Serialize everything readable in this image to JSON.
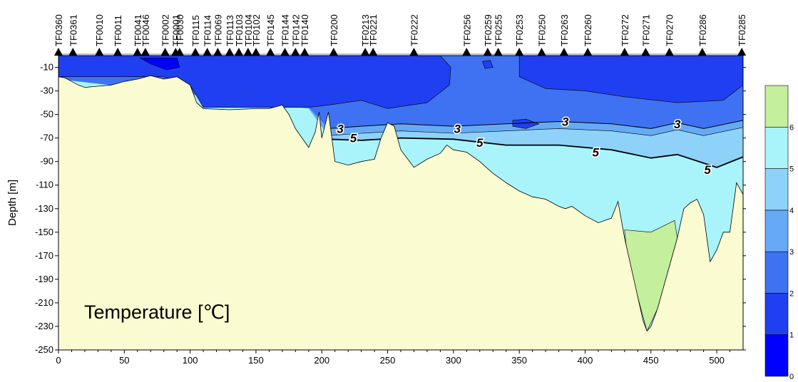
{
  "chart_data": {
    "type": "heatmap",
    "title": "Temperature [℃]",
    "xlabel": "",
    "ylabel": "Depth [m]",
    "xlim": [
      0,
      520
    ],
    "ylim": [
      -250,
      0
    ],
    "x_ticks": [
      0,
      50,
      100,
      150,
      200,
      250,
      300,
      350,
      400,
      450,
      500
    ],
    "y_ticks": [
      -10,
      -30,
      -50,
      -70,
      -90,
      -110,
      -130,
      -150,
      -170,
      -190,
      -210,
      -230,
      -250
    ],
    "colorbar": {
      "ticks": [
        0,
        1,
        2,
        3,
        4,
        5,
        6
      ],
      "colors": [
        "#0000ff",
        "#1f3ff0",
        "#3f72f2",
        "#66aaf5",
        "#8ed2fa",
        "#a9f4fb",
        "#c4ef9c"
      ]
    },
    "contour_labels": [
      "3",
      "3",
      "3",
      "3",
      "5",
      "5",
      "5",
      "5"
    ],
    "stations": [
      {
        "name": "TF0360",
        "x": 0
      },
      {
        "name": "TF0361",
        "x": 11
      },
      {
        "name": "TF0010",
        "x": 31
      },
      {
        "name": "TF0011",
        "x": 45
      },
      {
        "name": "TF0041",
        "x": 60
      },
      {
        "name": "TF0046",
        "x": 66
      },
      {
        "name": "TF0002",
        "x": 81
      },
      {
        "name": "TF0001",
        "x": 89
      },
      {
        "name": "TF0030",
        "x": 92
      },
      {
        "name": "TF0115",
        "x": 104
      },
      {
        "name": "TF0114",
        "x": 113
      },
      {
        "name": "TF0069",
        "x": 121
      },
      {
        "name": "TF0113",
        "x": 130
      },
      {
        "name": "TF0103",
        "x": 137
      },
      {
        "name": "TF0104",
        "x": 144
      },
      {
        "name": "TF0102",
        "x": 150
      },
      {
        "name": "TF0145",
        "x": 161
      },
      {
        "name": "TF0144",
        "x": 172
      },
      {
        "name": "TF0142",
        "x": 180
      },
      {
        "name": "TF0140",
        "x": 187
      },
      {
        "name": "TF0200",
        "x": 209
      },
      {
        "name": "TF0213",
        "x": 233
      },
      {
        "name": "TF0221",
        "x": 239
      },
      {
        "name": "TF0222",
        "x": 270
      },
      {
        "name": "TF0256",
        "x": 310
      },
      {
        "name": "TF0259",
        "x": 326
      },
      {
        "name": "TF0255",
        "x": 334
      },
      {
        "name": "TF0253",
        "x": 350
      },
      {
        "name": "TF0250",
        "x": 367
      },
      {
        "name": "TF0263",
        "x": 384
      },
      {
        "name": "TF0260",
        "x": 402
      },
      {
        "name": "TF0272",
        "x": 430
      },
      {
        "name": "TF0271",
        "x": 446
      },
      {
        "name": "TF0270",
        "x": 464
      },
      {
        "name": "TF0286",
        "x": 489
      },
      {
        "name": "TF0285",
        "x": 519
      }
    ],
    "bottom_profile": [
      [
        0,
        -18
      ],
      [
        5,
        -19
      ],
      [
        10,
        -22
      ],
      [
        15,
        -25
      ],
      [
        20,
        -27
      ],
      [
        30,
        -26
      ],
      [
        40,
        -25
      ],
      [
        50,
        -22
      ],
      [
        60,
        -20
      ],
      [
        70,
        -17
      ],
      [
        80,
        -20
      ],
      [
        90,
        -18
      ],
      [
        100,
        -25
      ],
      [
        105,
        -40
      ],
      [
        110,
        -45
      ],
      [
        130,
        -46
      ],
      [
        150,
        -45
      ],
      [
        160,
        -45
      ],
      [
        170,
        -42
      ],
      [
        175,
        -50
      ],
      [
        180,
        -62
      ],
      [
        185,
        -70
      ],
      [
        190,
        -78
      ],
      [
        195,
        -65
      ],
      [
        198,
        -48
      ],
      [
        200,
        -70
      ],
      [
        205,
        -48
      ],
      [
        210,
        -90
      ],
      [
        220,
        -93
      ],
      [
        230,
        -90
      ],
      [
        240,
        -88
      ],
      [
        245,
        -70
      ],
      [
        250,
        -57
      ],
      [
        255,
        -60
      ],
      [
        260,
        -80
      ],
      [
        270,
        -95
      ],
      [
        280,
        -88
      ],
      [
        290,
        -83
      ],
      [
        295,
        -76
      ],
      [
        300,
        -80
      ],
      [
        310,
        -82
      ],
      [
        320,
        -90
      ],
      [
        330,
        -100
      ],
      [
        340,
        -108
      ],
      [
        350,
        -115
      ],
      [
        360,
        -120
      ],
      [
        370,
        -122
      ],
      [
        380,
        -128
      ],
      [
        385,
        -130
      ],
      [
        390,
        -128
      ],
      [
        395,
        -132
      ],
      [
        400,
        -136
      ],
      [
        410,
        -142
      ],
      [
        420,
        -138
      ],
      [
        425,
        -124
      ],
      [
        430,
        -155
      ],
      [
        435,
        -180
      ],
      [
        440,
        -205
      ],
      [
        444,
        -225
      ],
      [
        447,
        -234
      ],
      [
        450,
        -230
      ],
      [
        455,
        -215
      ],
      [
        460,
        -195
      ],
      [
        465,
        -175
      ],
      [
        470,
        -155
      ],
      [
        475,
        -130
      ],
      [
        480,
        -125
      ],
      [
        485,
        -122
      ],
      [
        490,
        -135
      ],
      [
        495,
        -175
      ],
      [
        500,
        -165
      ],
      [
        505,
        -150
      ],
      [
        510,
        -150
      ],
      [
        515,
        -108
      ],
      [
        520,
        -118
      ]
    ],
    "isotherm_3": [
      [
        205,
        -62
      ],
      [
        230,
        -60
      ],
      [
        260,
        -58
      ],
      [
        300,
        -60
      ],
      [
        340,
        -58
      ],
      [
        380,
        -56
      ],
      [
        420,
        -58
      ],
      [
        450,
        -62
      ],
      [
        470,
        -57
      ],
      [
        490,
        -62
      ],
      [
        520,
        -55
      ]
    ],
    "isotherm_5": [
      [
        205,
        -71
      ],
      [
        230,
        -72
      ],
      [
        260,
        -70
      ],
      [
        300,
        -71
      ],
      [
        340,
        -76
      ],
      [
        380,
        -76
      ],
      [
        420,
        -80
      ],
      [
        450,
        -87
      ],
      [
        470,
        -84
      ],
      [
        500,
        -95
      ],
      [
        520,
        -86
      ]
    ],
    "deep_zone": [
      [
        430,
        -148
      ],
      [
        450,
        -150
      ],
      [
        468,
        -140
      ],
      [
        470,
        -155
      ],
      [
        465,
        -175
      ],
      [
        455,
        -215
      ],
      [
        447,
        -234
      ],
      [
        440,
        -205
      ],
      [
        432,
        -170
      ]
    ]
  }
}
